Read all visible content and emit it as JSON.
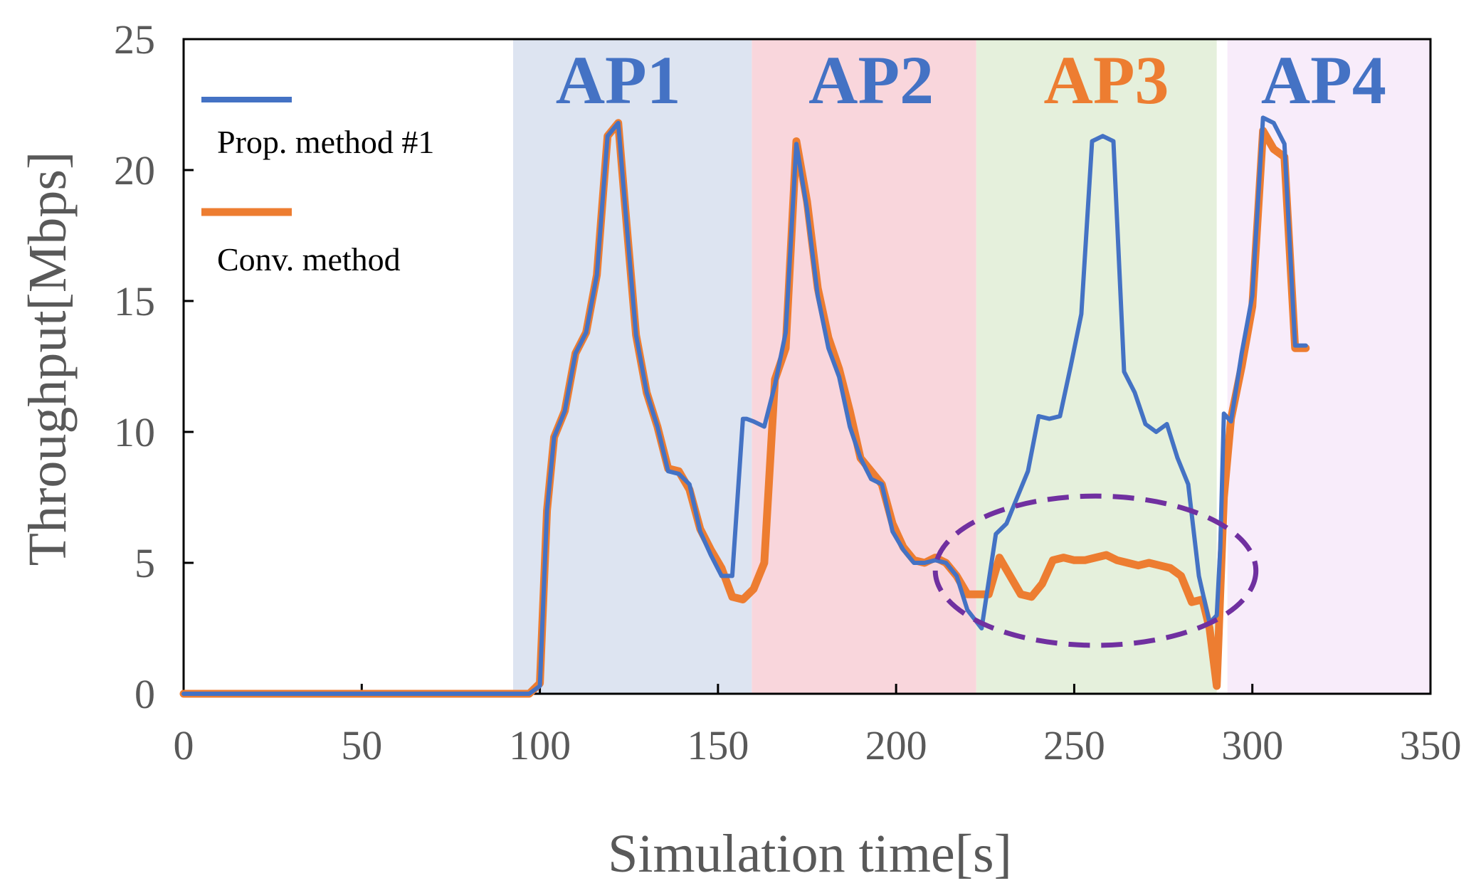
{
  "chart_data": {
    "type": "line",
    "title": "",
    "xlabel": "Simulation time[s]",
    "ylabel": "Throughput[Mbps]",
    "xlim": [
      0,
      350
    ],
    "ylim": [
      0,
      25
    ],
    "xticks": [
      0,
      50,
      100,
      150,
      200,
      250,
      300,
      350
    ],
    "yticks": [
      0,
      5,
      10,
      15,
      20,
      25
    ],
    "xtick_labels": [
      "0",
      "50",
      "100",
      "150",
      "200",
      "250",
      "300",
      "350"
    ],
    "ytick_labels": [
      "0",
      "5",
      "10",
      "15",
      "20",
      "25"
    ],
    "grid": false,
    "legend_position": "top-left",
    "regions": [
      {
        "label": "AP1",
        "x0": 92.5,
        "x1": 159.5,
        "fill": "#dde4f1",
        "label_color": "#4472c4",
        "label_x": 122
      },
      {
        "label": "AP2",
        "x0": 159.5,
        "x1": 222.5,
        "fill": "#f9d6dc",
        "label_color": "#4472c4",
        "label_x": 193
      },
      {
        "label": "AP3",
        "x0": 222.5,
        "x1": 290,
        "fill": "#e5f0dc",
        "label_color": "#ed7d31",
        "label_x": 259
      },
      {
        "label": "AP4",
        "x0": 293,
        "x1": 350,
        "fill": "#f8ecfa",
        "label_color": "#4472c4",
        "label_x": 320
      }
    ],
    "annotations": [
      {
        "type": "ellipse",
        "cx": 256,
        "cy": 4.7,
        "rx": 45,
        "ry": 2.85,
        "color": "#7030a0",
        "style": "dashed"
      }
    ],
    "series": [
      {
        "name": "Prop. method #1",
        "color": "#4472c4",
        "x": [
          0,
          97,
          100,
          102,
          104,
          107,
          110,
          113,
          116,
          119,
          122,
          124,
          127,
          130,
          133,
          136,
          139,
          142,
          145,
          148,
          151,
          154,
          157,
          158,
          160,
          163,
          166,
          169,
          172,
          175,
          178,
          181,
          184,
          187,
          190,
          193,
          196,
          199,
          202,
          205,
          208,
          211,
          214,
          217,
          220,
          224,
          228,
          231,
          234,
          237,
          240,
          243,
          246,
          249,
          252,
          255,
          258,
          261,
          264,
          267,
          270,
          273,
          276,
          279,
          282,
          285,
          288,
          290,
          291,
          292,
          294,
          297,
          300,
          303,
          306,
          309,
          312,
          315
        ],
        "y": [
          0,
          0,
          0.3,
          7,
          9.8,
          10.8,
          13,
          13.8,
          16,
          21.3,
          21.8,
          18.5,
          13.7,
          11.5,
          10.2,
          8.5,
          8.4,
          8.0,
          6.2,
          5.3,
          4.5,
          4.5,
          10.5,
          10.5,
          10.4,
          10.2,
          11.8,
          13.8,
          21,
          18.5,
          15.2,
          13.2,
          12.1,
          10.2,
          9.0,
          8.2,
          8.0,
          6.2,
          5.5,
          5.0,
          5.0,
          5.1,
          5.0,
          4.5,
          3.2,
          2.5,
          6.1,
          6.5,
          7.5,
          8.5,
          10.6,
          10.5,
          10.6,
          12.5,
          14.5,
          21.1,
          21.3,
          21.1,
          12.3,
          11.5,
          10.3,
          10.0,
          10.3,
          9.0,
          8.0,
          4.5,
          2.7,
          3.0,
          5.6,
          10.7,
          10.4,
          13.0,
          15.2,
          22.0,
          21.8,
          21.0,
          13.3,
          13.3
        ],
        "x_note": "points beyond 315 omitted"
      },
      {
        "name": "Conv. method",
        "color": "#ed7d31",
        "x": [
          0,
          97,
          100,
          102,
          104,
          107,
          110,
          113,
          116,
          119,
          122,
          124,
          127,
          130,
          133,
          136,
          139,
          142,
          145,
          148,
          151,
          154,
          157,
          160,
          163,
          166,
          169,
          172,
          175,
          178,
          181,
          184,
          187,
          190,
          193,
          196,
          199,
          202,
          205,
          208,
          211,
          214,
          217,
          220,
          223,
          226,
          229,
          232,
          235,
          238,
          241,
          244,
          247,
          250,
          253,
          256,
          259,
          262,
          265,
          268,
          271,
          274,
          277,
          280,
          283,
          286,
          288,
          290,
          292,
          294,
          297,
          300,
          303,
          306,
          309,
          312,
          315
        ],
        "y": [
          0,
          0,
          0.4,
          7,
          9.8,
          10.8,
          13,
          13.8,
          16,
          21.3,
          21.8,
          18.5,
          13.7,
          11.5,
          10.2,
          8.6,
          8.5,
          7.8,
          6.3,
          5.5,
          4.8,
          3.7,
          3.6,
          4.0,
          5.0,
          12.0,
          13.2,
          21.1,
          18.8,
          15.5,
          13.6,
          12.4,
          10.8,
          9.0,
          8.5,
          8.0,
          6.5,
          5.6,
          5.1,
          5.0,
          5.2,
          5.0,
          4.5,
          3.8,
          3.8,
          3.8,
          5.2,
          4.5,
          3.8,
          3.7,
          4.2,
          5.1,
          5.2,
          5.1,
          5.1,
          5.2,
          5.3,
          5.1,
          5.0,
          4.9,
          5.0,
          4.9,
          4.8,
          4.5,
          3.5,
          3.6,
          2.5,
          0.3,
          7.5,
          10.5,
          12.5,
          14.8,
          21.5,
          20.8,
          20.5,
          13.2,
          13.2
        ]
      }
    ]
  }
}
